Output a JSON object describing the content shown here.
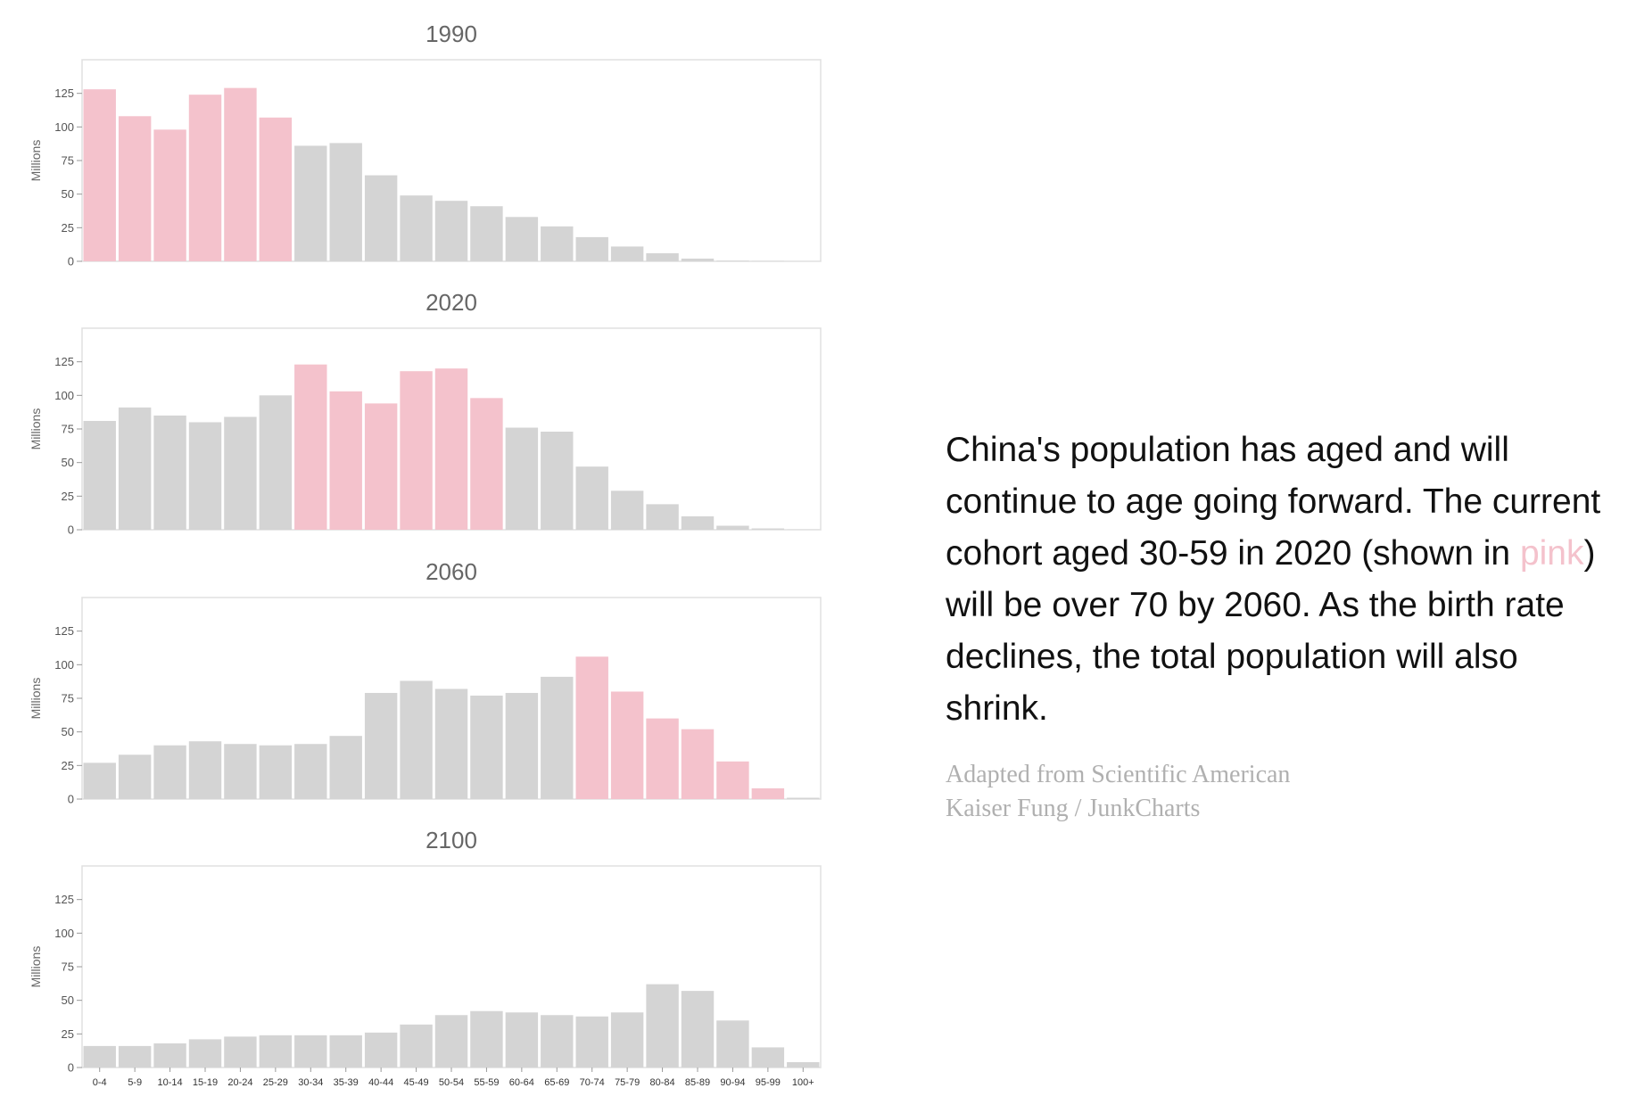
{
  "chart_data": [
    {
      "type": "bar",
      "title": "1990",
      "ylabel": "Millions",
      "ylim": [
        0,
        150
      ],
      "yticks": [
        0,
        25,
        50,
        75,
        100,
        125
      ],
      "categories": [
        "0-4",
        "5-9",
        "10-14",
        "15-19",
        "20-24",
        "25-29",
        "30-34",
        "35-39",
        "40-44",
        "45-49",
        "50-54",
        "55-59",
        "60-64",
        "65-69",
        "70-74",
        "75-79",
        "80-84",
        "85-89",
        "90-94",
        "95-99",
        "100+"
      ],
      "values": [
        128,
        108,
        98,
        124,
        129,
        107,
        86,
        88,
        64,
        49,
        45,
        41,
        33,
        26,
        18,
        11,
        6,
        2,
        0.5,
        0.2,
        0
      ],
      "highlight": [
        0,
        1,
        2,
        3,
        4,
        5
      ]
    },
    {
      "type": "bar",
      "title": "2020",
      "ylabel": "Millions",
      "ylim": [
        0,
        150
      ],
      "yticks": [
        0,
        25,
        50,
        75,
        100,
        125
      ],
      "categories": [
        "0-4",
        "5-9",
        "10-14",
        "15-19",
        "20-24",
        "25-29",
        "30-34",
        "35-39",
        "40-44",
        "45-49",
        "50-54",
        "55-59",
        "60-64",
        "65-69",
        "70-74",
        "75-79",
        "80-84",
        "85-89",
        "90-94",
        "95-99",
        "100+"
      ],
      "values": [
        81,
        91,
        85,
        80,
        84,
        100,
        123,
        103,
        94,
        118,
        120,
        98,
        76,
        73,
        47,
        29,
        19,
        10,
        3,
        1,
        0.2
      ],
      "highlight": [
        6,
        7,
        8,
        9,
        10,
        11
      ]
    },
    {
      "type": "bar",
      "title": "2060",
      "ylabel": "Millions",
      "ylim": [
        0,
        150
      ],
      "yticks": [
        0,
        25,
        50,
        75,
        100,
        125
      ],
      "categories": [
        "0-4",
        "5-9",
        "10-14",
        "15-19",
        "20-24",
        "25-29",
        "30-34",
        "35-39",
        "40-44",
        "45-49",
        "50-54",
        "55-59",
        "60-64",
        "65-69",
        "70-74",
        "75-79",
        "80-84",
        "85-89",
        "90-94",
        "95-99",
        "100+"
      ],
      "values": [
        27,
        33,
        40,
        43,
        41,
        40,
        41,
        47,
        79,
        88,
        82,
        77,
        79,
        91,
        106,
        80,
        60,
        52,
        28,
        8,
        1
      ],
      "highlight": [
        14,
        15,
        16,
        17,
        18,
        19
      ]
    },
    {
      "type": "bar",
      "title": "2100",
      "ylabel": "Millions",
      "ylim": [
        0,
        150
      ],
      "yticks": [
        0,
        25,
        50,
        75,
        100,
        125
      ],
      "categories": [
        "0-4",
        "5-9",
        "10-14",
        "15-19",
        "20-24",
        "25-29",
        "30-34",
        "35-39",
        "40-44",
        "45-49",
        "50-54",
        "55-59",
        "60-64",
        "65-69",
        "70-74",
        "75-79",
        "80-84",
        "85-89",
        "90-94",
        "95-99",
        "100+"
      ],
      "values": [
        16,
        16,
        18,
        21,
        23,
        24,
        24,
        24,
        26,
        32,
        39,
        42,
        41,
        39,
        38,
        41,
        62,
        57,
        35,
        15,
        4
      ],
      "highlight": [],
      "show_category_labels": true
    }
  ],
  "colors": {
    "highlight": "#f4c2cc",
    "base": "#d4d4d4",
    "frame": "#e0e0e0",
    "axis": "#999999"
  },
  "caption": {
    "part1": "China's population has aged and will continue to age going forward. The current cohort aged 30-59 in 2020 (shown in ",
    "pink_word": "pink",
    "part2": ") will be over 70 by 2060. As the birth rate declines, the total population will also shrink."
  },
  "credits": {
    "line1": "Adapted from Scientific American",
    "line2": "Kaiser Fung / JunkCharts"
  }
}
